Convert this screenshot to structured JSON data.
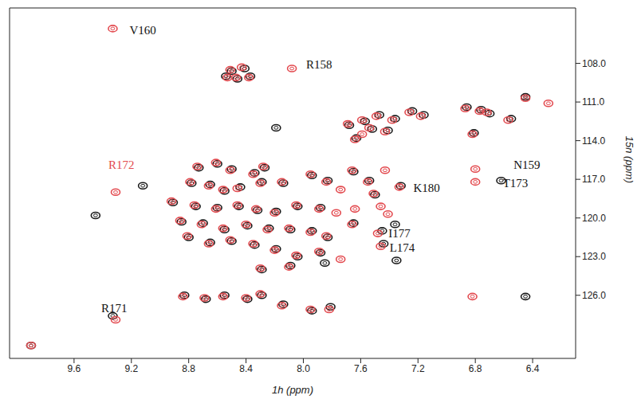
{
  "chart_data": {
    "type": "scatter",
    "x_label": "1h (ppm)",
    "y_label": "15n (ppm)",
    "xlim": [
      10.05,
      6.1
    ],
    "ylim": [
      103.7,
      130.9
    ],
    "xticks": [
      9.6,
      9.2,
      8.8,
      8.4,
      {
        "value": 8,
        "label": "8.0"
      },
      7.6,
      7.2,
      6.8,
      6.4
    ],
    "yticks": [
      {
        "value": 108,
        "label": "108.0"
      },
      {
        "value": 111,
        "label": "111.0"
      },
      {
        "value": 114,
        "label": "114.0"
      },
      {
        "value": 117,
        "label": "117.0"
      },
      {
        "value": 120,
        "label": "120.0"
      },
      {
        "value": 123,
        "label": "123.0"
      },
      {
        "value": 126,
        "label": "126.0"
      }
    ],
    "grid": false,
    "series": [
      {
        "color": "#1a1a1a",
        "marker": "circle",
        "x": [
          9.12,
          9.33,
          6.62,
          7.32,
          9.9,
          7.45,
          7.44,
          8.5,
          8.41,
          8.46,
          8.37,
          8.54,
          7.68,
          7.57,
          7.47,
          7.36,
          7.24,
          7.16,
          7.63,
          7.52,
          7.41,
          6.86,
          6.76,
          6.7,
          6.81,
          6.55,
          6.45,
          8.73,
          8.6,
          8.5,
          8.34,
          8.27,
          8.78,
          8.65,
          8.55,
          8.44,
          8.29,
          8.14,
          7.94,
          7.83,
          8.91,
          8.75,
          8.6,
          8.45,
          8.32,
          8.19,
          8.04,
          7.88,
          8.85,
          8.7,
          8.55,
          8.39,
          8.24,
          8.09,
          7.94,
          8.8,
          8.65,
          8.5,
          8.34,
          8.19,
          8.04,
          7.88,
          8.29,
          8.09,
          7.83,
          7.65,
          7.5,
          7.54,
          7.65,
          7.85,
          9.45,
          7.36,
          8.19,
          8.83,
          8.68,
          8.55,
          8.39,
          8.29,
          8.14,
          7.94,
          7.81,
          7.35,
          6.45
        ],
        "values": [
          117.5,
          127.6,
          117.1,
          117.5,
          129.9,
          121.0,
          122.0,
          108.6,
          108.4,
          109.2,
          109.0,
          109.0,
          112.8,
          112.5,
          112.0,
          112.3,
          111.7,
          112.0,
          113.8,
          113.1,
          113.2,
          111.4,
          111.6,
          111.9,
          113.4,
          112.3,
          110.6,
          116.1,
          115.8,
          116.2,
          116.5,
          116.1,
          117.3,
          117.4,
          117.9,
          117.6,
          117.2,
          117.3,
          116.7,
          117.1,
          118.8,
          119.1,
          119.2,
          119.1,
          119.4,
          119.5,
          119.1,
          119.2,
          120.3,
          120.4,
          120.9,
          120.6,
          120.8,
          120.9,
          121.0,
          121.5,
          121.9,
          121.8,
          122.1,
          122.4,
          123.0,
          122.7,
          124.0,
          123.7,
          121.5,
          120.4,
          118.2,
          117.1,
          116.4,
          123.5,
          119.8,
          120.5,
          113.0,
          126.0,
          126.3,
          126.0,
          126.3,
          126.0,
          126.7,
          127.2,
          126.9,
          123.3,
          126.1
        ]
      },
      {
        "color": "#e34a4f",
        "marker": "circle",
        "x": [
          9.33,
          8.08,
          9.31,
          9.31,
          6.8,
          6.8,
          7.33,
          7.48,
          7.46,
          9.9,
          6.82,
          8.51,
          8.43,
          8.47,
          8.38,
          8.53,
          7.69,
          7.59,
          7.49,
          7.38,
          7.26,
          7.18,
          7.64,
          7.59,
          7.54,
          7.43,
          6.87,
          6.77,
          6.72,
          6.82,
          6.57,
          6.45,
          6.29,
          8.74,
          8.61,
          8.51,
          8.35,
          8.28,
          8.79,
          8.66,
          8.56,
          8.46,
          8.3,
          8.15,
          7.95,
          7.84,
          7.74,
          8.92,
          8.76,
          8.61,
          8.46,
          8.33,
          8.2,
          8.05,
          7.89,
          7.77,
          8.86,
          8.71,
          8.56,
          8.4,
          8.25,
          8.1,
          7.95,
          8.81,
          8.66,
          8.51,
          8.35,
          8.2,
          8.05,
          7.89,
          7.74,
          8.3,
          8.1,
          7.84,
          7.66,
          7.64,
          7.46,
          7.41,
          7.51,
          7.55,
          7.66,
          7.43,
          8.84,
          8.69,
          8.56,
          8.4,
          8.3,
          8.15,
          7.95,
          7.82
        ],
        "values": [
          105.3,
          108.4,
          118.0,
          127.9,
          116.2,
          117.2,
          117.6,
          121.2,
          122.2,
          129.9,
          126.1,
          108.5,
          108.3,
          109.1,
          109.1,
          109.1,
          112.7,
          112.4,
          112.1,
          112.4,
          111.8,
          112.1,
          113.9,
          113.5,
          113.0,
          113.3,
          111.5,
          111.7,
          111.8,
          113.5,
          112.4,
          110.7,
          111.1,
          116.0,
          115.7,
          116.3,
          116.6,
          116.0,
          117.2,
          117.5,
          117.8,
          117.7,
          117.3,
          117.2,
          116.6,
          117.2,
          117.8,
          118.7,
          119.0,
          119.3,
          119.0,
          119.3,
          119.6,
          119.0,
          119.3,
          119.6,
          120.2,
          120.5,
          120.8,
          120.5,
          120.9,
          120.8,
          121.1,
          121.4,
          122.0,
          121.7,
          122.0,
          122.5,
          122.9,
          122.6,
          123.2,
          123.9,
          123.8,
          121.4,
          120.5,
          119.3,
          119.1,
          119.7,
          118.1,
          117.2,
          116.3,
          116.3,
          126.1,
          126.2,
          126.1,
          126.2,
          125.9,
          126.8,
          127.1,
          127.1
        ]
      }
    ],
    "annotations": [
      {
        "text": "V160",
        "x": 9.12,
        "y": 105.4,
        "color": "#111111"
      },
      {
        "text": "R158",
        "x": 7.89,
        "y": 108.1,
        "color": "#111111"
      },
      {
        "text": "R172",
        "x": 9.27,
        "y": 115.9,
        "color": "#e34a4f"
      },
      {
        "text": "N159",
        "x": 6.44,
        "y": 115.9,
        "color": "#111111"
      },
      {
        "text": "T173",
        "x": 6.52,
        "y": 117.3,
        "color": "#111111"
      },
      {
        "text": "K180",
        "x": 7.14,
        "y": 117.7,
        "color": "#111111"
      },
      {
        "text": "I177",
        "x": 7.33,
        "y": 121.2,
        "color": "#111111"
      },
      {
        "text": "L174",
        "x": 7.31,
        "y": 122.3,
        "color": "#111111"
      },
      {
        "text": "R171",
        "x": 9.32,
        "y": 127.0,
        "color": "#111111"
      }
    ]
  }
}
